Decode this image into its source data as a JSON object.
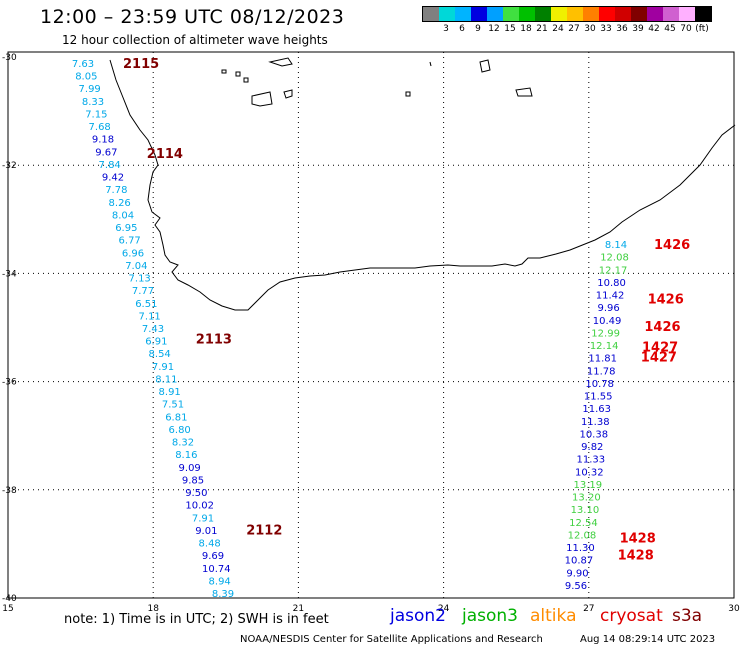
{
  "header": {
    "title": "12:00 – 23:59 UTC 08/12/2023",
    "subtitle": "12 hour collection of altimeter wave heights"
  },
  "legend": {
    "unit": "(ft)",
    "colors": [
      "#808080",
      "#00d8d8",
      "#00b4ff",
      "#0000e0",
      "#00a0ff",
      "#40e040",
      "#00c000",
      "#008000",
      "#f0f000",
      "#ffc000",
      "#ff8000",
      "#ff0000",
      "#d00000",
      "#800000",
      "#a000a0",
      "#d060d0",
      "#ffb0ff",
      "#000000"
    ],
    "labels": [
      "3",
      "6",
      "9",
      "12",
      "15",
      "18",
      "21",
      "24",
      "27",
      "30",
      "33",
      "36",
      "39",
      "42",
      "45",
      "70"
    ]
  },
  "map": {
    "x_ticks": [
      "15",
      "18",
      "21",
      "24",
      "27",
      "30"
    ],
    "y_ticks": [
      "-30",
      "-32",
      "-34",
      "-36",
      "-38",
      "-40"
    ]
  },
  "tracks": [
    {
      "satellite": "s3a",
      "color_group": "west",
      "time_labels": [
        "2115",
        "2114",
        "2113",
        "2112"
      ],
      "values": [
        "7.63",
        "8.05",
        "7.99",
        "8.33",
        "7.15",
        "7.68",
        "9.18",
        "9.67",
        "7.84",
        "9.42",
        "7.78",
        "8.26",
        "8.04",
        "6.95",
        "6.77",
        "6.96",
        "7.04",
        "7.13",
        "7.77",
        "6.51",
        "7.11",
        "7.43",
        "6.91",
        "8.54",
        "7.91",
        "8.11",
        "8.91",
        "7.51",
        "6.81",
        "6.80",
        "8.32",
        "8.16",
        "9.09",
        "9.85",
        "9.50",
        "10.02",
        "7.91",
        "9.01",
        "8.48",
        "9.69",
        "10.74",
        "8.94",
        "8.39"
      ]
    },
    {
      "satellite": "jason3/cryosat",
      "color_group": "east",
      "time_labels": [
        "1426",
        "1426",
        "1426",
        "1427",
        "1427",
        "1428",
        "1428"
      ],
      "values": [
        "8.14",
        "12.08",
        "12.17",
        "10.80",
        "11.42",
        "9.96",
        "10.49",
        "12.99",
        "12.14",
        "11.81",
        "11.78",
        "10.78",
        "11.55",
        "11.63",
        "11.38",
        "10.38",
        "9.82",
        "11.33",
        "10.32",
        "13.19",
        "13.20",
        "13.10",
        "12.54",
        "12.08",
        "11.30",
        "10.87",
        "9.90",
        "9.56"
      ]
    }
  ],
  "note": "note:  1) Time is in UTC;  2) SWH is in feet",
  "satellites": [
    {
      "name": "jason2",
      "color": "#0000e0"
    },
    {
      "name": "jason3",
      "color": "#00b000"
    },
    {
      "name": "altika",
      "color": "#ff8c00"
    },
    {
      "name": "cryosat",
      "color": "#e00000"
    },
    {
      "name": "s3a",
      "color": "#800000"
    }
  ],
  "footer": {
    "source": "NOAA/NESDIS Center for Satellite Applications and Research",
    "timestamp": "Aug 14 08:29:14 UTC 2023"
  }
}
